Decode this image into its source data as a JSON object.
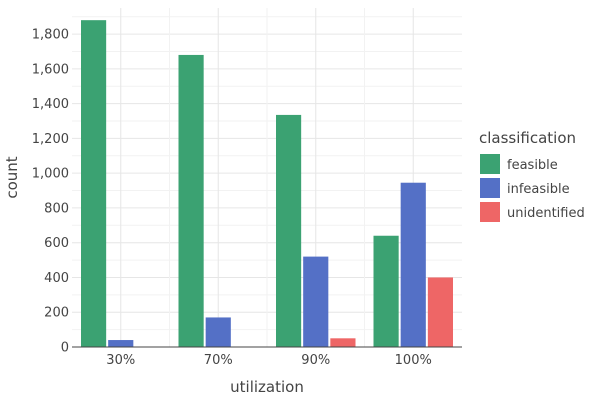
{
  "chart_data": {
    "type": "bar",
    "categories": [
      "30%",
      "70%",
      "90%",
      "100%"
    ],
    "series": [
      {
        "name": "feasible",
        "values": [
          1880,
          1680,
          1335,
          640
        ],
        "color": "#3ba272"
      },
      {
        "name": "infeasible",
        "values": [
          40,
          170,
          520,
          945
        ],
        "color": "#5470c6"
      },
      {
        "name": "unidentified",
        "values": [
          0,
          0,
          50,
          400
        ],
        "color": "#ee6666"
      }
    ],
    "xlabel": "utilization",
    "ylabel": "count",
    "ylim": [
      0,
      1950
    ],
    "yticks": [
      "0",
      "200",
      "400",
      "600",
      "800",
      "1,000",
      "1,200",
      "1,400",
      "1,600",
      "1,800"
    ],
    "ytick_values": [
      0,
      200,
      400,
      600,
      800,
      1000,
      1200,
      1400,
      1600,
      1800
    ],
    "legend": {
      "title": "classification",
      "position": "right"
    },
    "grid": true
  }
}
